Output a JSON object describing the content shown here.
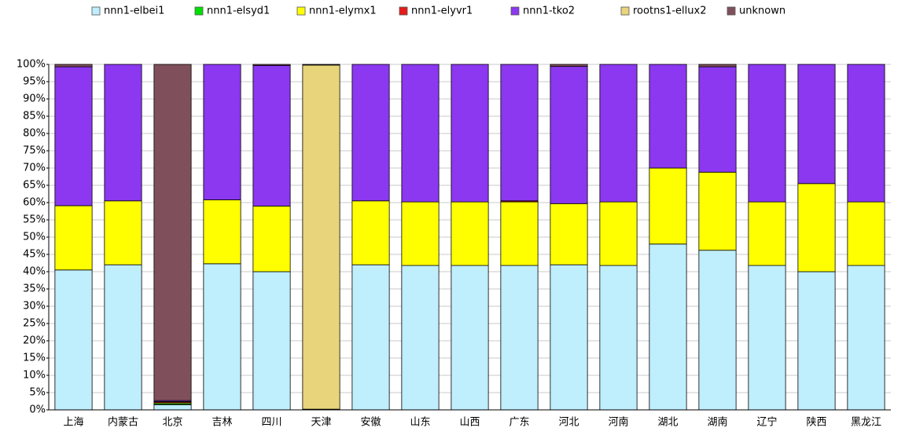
{
  "chart_data": {
    "type": "stacked_bar",
    "categories": [
      "上海",
      "内蒙古",
      "北京",
      "吉林",
      "四川",
      "天津",
      "安徽",
      "山东",
      "山西",
      "广东",
      "河北",
      "河南",
      "湖北",
      "湖南",
      "辽宁",
      "陕西",
      "黑龙江"
    ],
    "series": [
      {
        "name": "nnn1-elbei1",
        "color": "#bfeefd",
        "values": [
          40.5,
          42,
          1.5,
          42.3,
          40,
          0.2,
          42,
          41.8,
          41.8,
          41.8,
          42,
          41.8,
          48,
          46.2,
          41.8,
          40,
          41.8
        ]
      },
      {
        "name": "nnn1-elsyd1",
        "color": "#00e000",
        "values": [
          0,
          0,
          0.3,
          0,
          0,
          0,
          0,
          0,
          0,
          0,
          0,
          0,
          0,
          0,
          0,
          0,
          0
        ]
      },
      {
        "name": "nnn1-elymx1",
        "color": "#ffff00",
        "values": [
          18.6,
          18.5,
          0.3,
          18.5,
          19,
          0,
          18.5,
          18.4,
          18.4,
          18.4,
          17.7,
          18.4,
          22,
          22.6,
          18.4,
          25.5,
          18.4
        ]
      },
      {
        "name": "nnn1-elyvr1",
        "color": "#e81a1a",
        "values": [
          0,
          0,
          0.3,
          0,
          0,
          0,
          0,
          0,
          0,
          0.3,
          0,
          0,
          0,
          0,
          0,
          0,
          0
        ]
      },
      {
        "name": "nnn1-tko2",
        "color": "#8b38f0",
        "values": [
          40.2,
          39.5,
          0.3,
          39.2,
          40.7,
          0,
          39.5,
          39.8,
          39.8,
          39.5,
          39.7,
          39.8,
          30,
          30.5,
          39.8,
          34.5,
          39.8
        ]
      },
      {
        "name": "rootns1-ellux2",
        "color": "#e8d47a",
        "values": [
          0,
          0,
          0,
          0,
          0,
          99.6,
          0,
          0,
          0,
          0,
          0,
          0,
          0,
          0,
          0,
          0,
          0
        ]
      },
      {
        "name": "unknown",
        "color": "#7f505c",
        "values": [
          0.7,
          0,
          97.3,
          0,
          0.3,
          0.2,
          0,
          0,
          0,
          0,
          0.6,
          0,
          0,
          0.7,
          0,
          0,
          0
        ]
      }
    ],
    "ylim": [
      0,
      100
    ],
    "yticks": [
      {
        "value": 0,
        "label": "0%"
      },
      {
        "value": 5,
        "label": "5%"
      },
      {
        "value": 10,
        "label": "10%"
      },
      {
        "value": 15,
        "label": "15%"
      },
      {
        "value": 20,
        "label": "20%"
      },
      {
        "value": 25,
        "label": "25%"
      },
      {
        "value": 30,
        "label": "30%"
      },
      {
        "value": 35,
        "label": "35%"
      },
      {
        "value": 40,
        "label": "40%"
      },
      {
        "value": 45,
        "label": "45%"
      },
      {
        "value": 50,
        "label": "50%"
      },
      {
        "value": 55,
        "label": "55%"
      },
      {
        "value": 60,
        "label": "60%"
      },
      {
        "value": 65,
        "label": "65%"
      },
      {
        "value": 70,
        "label": "70%"
      },
      {
        "value": 75,
        "label": "75%"
      },
      {
        "value": 80,
        "label": "80%"
      },
      {
        "value": 85,
        "label": "85%"
      },
      {
        "value": 90,
        "label": "90%"
      },
      {
        "value": 95,
        "label": "95%"
      },
      {
        "value": 100,
        "label": "100%"
      }
    ],
    "grid": true,
    "legend": "top"
  }
}
